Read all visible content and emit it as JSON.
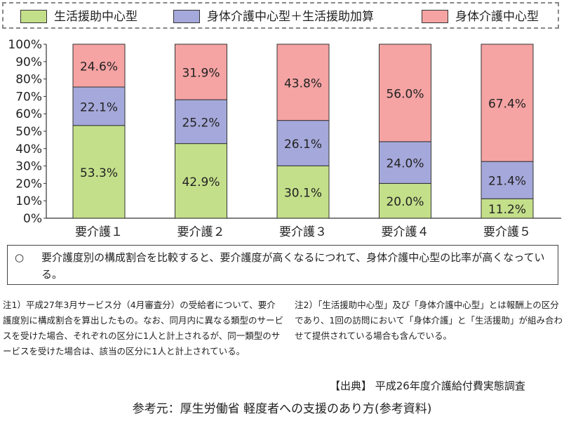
{
  "chart_data": {
    "type": "bar",
    "stacked": true,
    "categories": [
      "要介護１",
      "要介護２",
      "要介護３",
      "要介護４",
      "要介護５"
    ],
    "series": [
      {
        "name": "生活援助中心型",
        "color": "#c4df8a",
        "values": [
          53.3,
          42.9,
          30.1,
          20.0,
          11.2
        ],
        "labels": [
          "53.3%",
          "42.9%",
          "30.1%",
          "20.0%",
          "11.2%"
        ]
      },
      {
        "name": "身体介護中心型＋生活援助加算",
        "color": "#a5a8da",
        "values": [
          22.1,
          25.2,
          26.1,
          24.0,
          21.4
        ],
        "labels": [
          "22.1%",
          "25.2%",
          "26.1%",
          "24.0%",
          "21.4%"
        ]
      },
      {
        "name": "身体介護中心型",
        "color": "#f5a3a3",
        "values": [
          24.6,
          31.9,
          43.8,
          56.0,
          67.4
        ],
        "labels": [
          "24.6%",
          "31.9%",
          "43.8%",
          "56.0%",
          "67.4%"
        ]
      }
    ],
    "ylim": [
      0,
      100
    ],
    "yticks": [
      "0%",
      "10%",
      "20%",
      "30%",
      "40%",
      "50%",
      "60%",
      "70%",
      "80%",
      "90%",
      "100%"
    ],
    "legend_position": "top",
    "grid": false
  },
  "summary": {
    "bullet": "○",
    "text": "要介護度別の構成割合を比較すると、要介護度が高くなるにつれて、身体介護中心型の比率が高くなっている。"
  },
  "notes": {
    "note1_head": "注1）",
    "note1_body": "平成27年3月サービス分（4月審査分）の受給者について、要介護度別に構成割合を算出したもの。なお、同月内に異なる類型のサービスを受けた場合、それぞれの区分に1人と計上されるが、同一類型のサービスを受けた場合は、該当の区分に1人と計上されている。",
    "note2_head": "注2）",
    "note2_body": "「生活援助中心型」及び「身体介護中心型」とは報酬上の区分であり、1回の訪問において「身体介護」と「生活援助」が組み合わせて提供されている場合も含んでいる。"
  },
  "source": "【出典】 平成26年度介護給付費実態調査",
  "reference": "参考元：厚生労働省 軽度者への支援のあり方(参考資料)"
}
